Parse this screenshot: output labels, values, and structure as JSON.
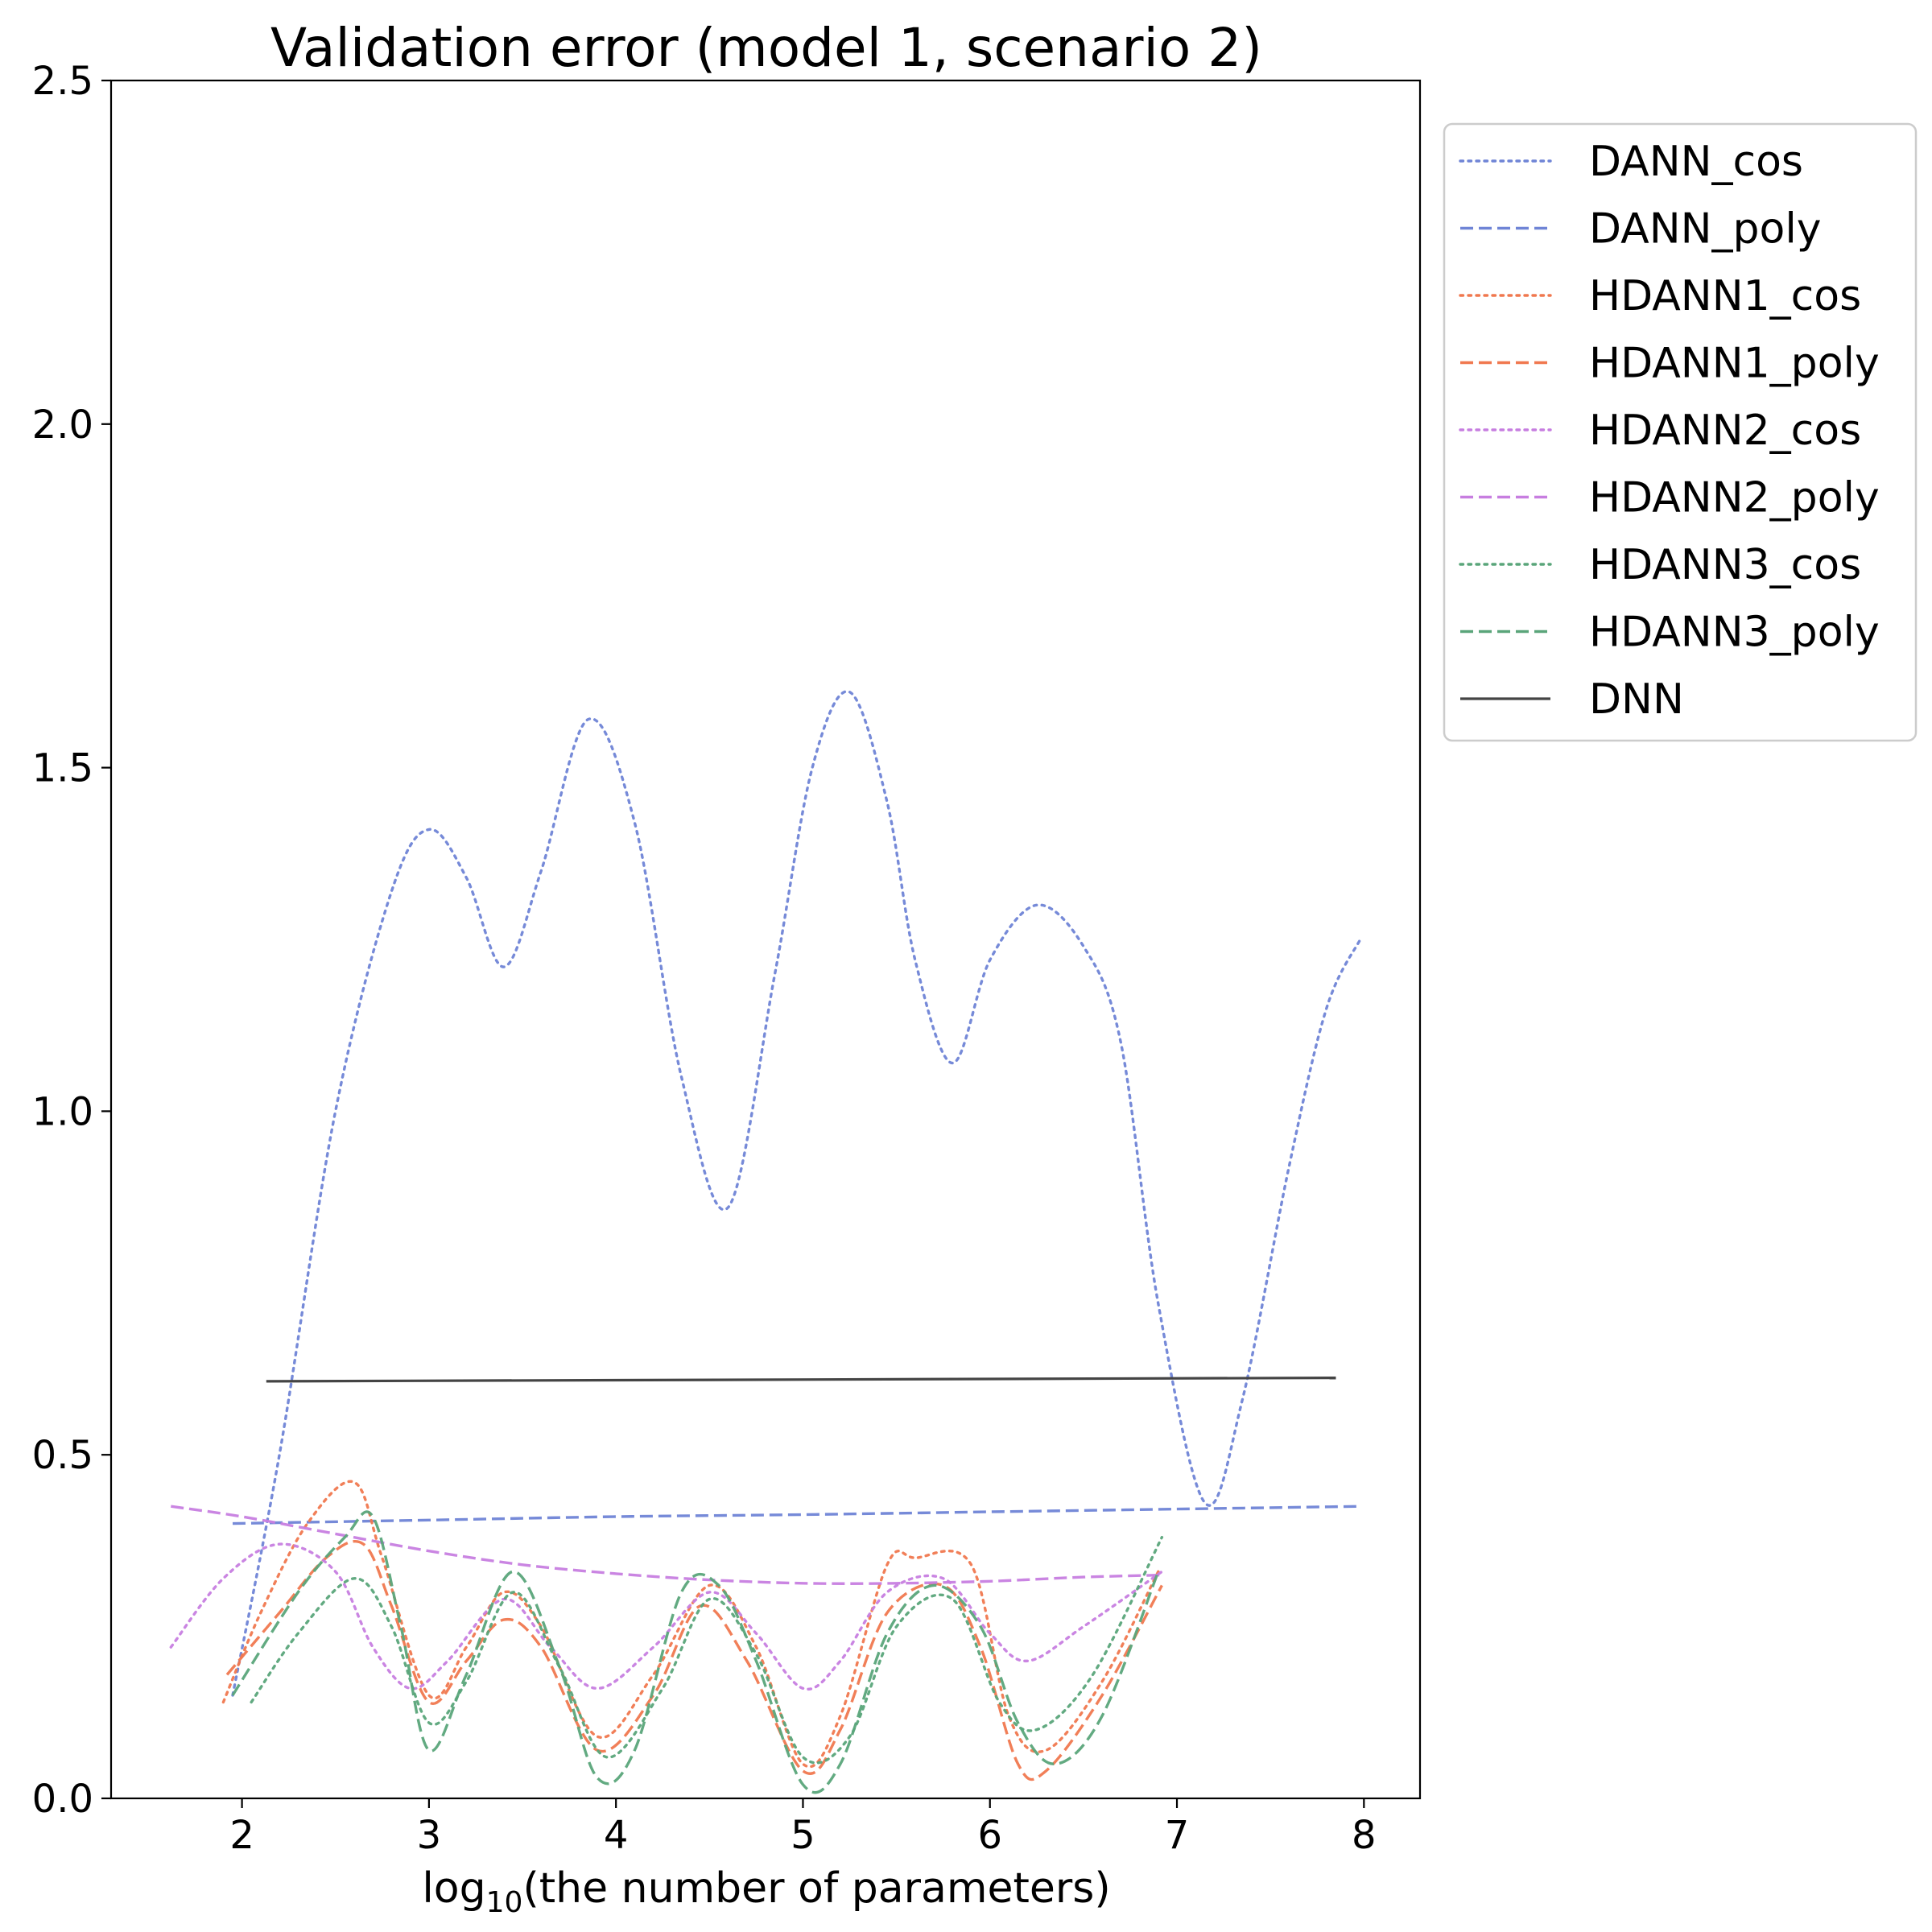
{
  "chart_data": {
    "type": "line",
    "title": "Validation error (model 1, scenario 2)",
    "xlabel": "log10(the number of parameters)",
    "xlabel_parts": {
      "base": "log",
      "sub": "10",
      "rest": "(the number of parameters)"
    },
    "ylabel": "",
    "xlim": [
      1.3,
      8.3
    ],
    "ylim": [
      0.0,
      2.5
    ],
    "xticks": [
      2,
      3,
      4,
      5,
      6,
      7,
      8
    ],
    "yticks": [
      0.0,
      0.5,
      1.0,
      1.5,
      2.0,
      2.5
    ],
    "xtick_labels": [
      "2",
      "3",
      "4",
      "5",
      "6",
      "7",
      "8"
    ],
    "ytick_labels": [
      "0.0",
      "0.5",
      "1.0",
      "1.5",
      "2.0",
      "2.5"
    ],
    "grid": false,
    "legend_position": "outside-right-top",
    "series": [
      {
        "name": "DANN_cos",
        "color": "#6f84d6",
        "style": "dotted",
        "x": [
          1.95,
          2.2,
          2.5,
          2.8,
          3.0,
          3.2,
          3.4,
          3.6,
          3.85,
          4.1,
          4.35,
          4.6,
          4.85,
          5.05,
          5.25,
          5.45,
          5.6,
          5.8,
          6.0,
          6.25,
          6.5,
          6.7,
          6.9,
          7.15,
          7.35,
          7.6,
          7.8,
          7.98
        ],
        "y": [
          0.15,
          0.5,
          1.0,
          1.32,
          1.41,
          1.34,
          1.21,
          1.35,
          1.57,
          1.42,
          1.05,
          0.86,
          1.2,
          1.5,
          1.61,
          1.45,
          1.22,
          1.07,
          1.22,
          1.3,
          1.24,
          1.1,
          0.72,
          0.43,
          0.58,
          0.92,
          1.15,
          1.25
        ]
      },
      {
        "name": "DANN_poly",
        "color": "#6f84d6",
        "style": "dashed",
        "x": [
          1.95,
          3.0,
          4.0,
          5.0,
          6.0,
          7.0,
          7.98
        ],
        "y": [
          0.4,
          0.405,
          0.41,
          0.413,
          0.417,
          0.421,
          0.425
        ]
      },
      {
        "name": "HDANN1_cos",
        "color": "#f0784f",
        "style": "dotted",
        "x": [
          1.9,
          2.1,
          2.35,
          2.6,
          2.75,
          3.0,
          3.2,
          3.4,
          3.6,
          3.9,
          4.2,
          4.5,
          4.75,
          5.0,
          5.2,
          5.45,
          5.6,
          5.9,
          6.1,
          6.3,
          6.6,
          6.9
        ],
        "y": [
          0.14,
          0.27,
          0.4,
          0.46,
          0.35,
          0.15,
          0.22,
          0.3,
          0.25,
          0.09,
          0.18,
          0.31,
          0.22,
          0.05,
          0.12,
          0.34,
          0.35,
          0.34,
          0.12,
          0.07,
          0.17,
          0.33
        ]
      },
      {
        "name": "HDANN1_poly",
        "color": "#f0784f",
        "style": "dashed",
        "x": [
          1.92,
          2.2,
          2.45,
          2.65,
          2.8,
          3.0,
          3.2,
          3.4,
          3.6,
          3.9,
          4.2,
          4.45,
          4.7,
          5.0,
          5.2,
          5.45,
          5.75,
          5.95,
          6.15,
          6.3,
          6.6,
          6.92
        ],
        "y": [
          0.18,
          0.27,
          0.35,
          0.37,
          0.28,
          0.14,
          0.2,
          0.26,
          0.22,
          0.07,
          0.15,
          0.28,
          0.2,
          0.04,
          0.1,
          0.27,
          0.31,
          0.22,
          0.05,
          0.04,
          0.15,
          0.31
        ]
      },
      {
        "name": "HDANN2_cos",
        "color": "#c77ee0",
        "style": "dotted",
        "x": [
          1.62,
          1.9,
          2.2,
          2.5,
          2.7,
          2.9,
          3.1,
          3.4,
          3.65,
          3.9,
          4.2,
          4.5,
          4.75,
          5.0,
          5.2,
          5.45,
          5.75,
          6.0,
          6.2,
          6.5,
          6.92
        ],
        "y": [
          0.22,
          0.32,
          0.37,
          0.33,
          0.22,
          0.16,
          0.2,
          0.29,
          0.22,
          0.16,
          0.22,
          0.3,
          0.24,
          0.16,
          0.2,
          0.3,
          0.32,
          0.24,
          0.2,
          0.25,
          0.33
        ]
      },
      {
        "name": "HDANN2_poly",
        "color": "#c77ee0",
        "style": "dashed",
        "x": [
          1.62,
          2.0,
          2.5,
          3.0,
          3.5,
          4.0,
          4.5,
          5.0,
          5.5,
          6.0,
          6.5,
          6.92
        ],
        "y": [
          0.425,
          0.41,
          0.385,
          0.36,
          0.34,
          0.327,
          0.318,
          0.313,
          0.313,
          0.316,
          0.322,
          0.325
        ]
      },
      {
        "name": "HDANN3_cos",
        "color": "#5aa57a",
        "style": "dotted",
        "x": [
          2.05,
          2.3,
          2.6,
          2.8,
          3.0,
          3.2,
          3.45,
          3.7,
          3.95,
          4.25,
          4.5,
          4.75,
          5.0,
          5.25,
          5.5,
          5.8,
          6.05,
          6.25,
          6.55,
          6.92
        ],
        "y": [
          0.14,
          0.24,
          0.32,
          0.25,
          0.11,
          0.17,
          0.3,
          0.19,
          0.06,
          0.16,
          0.29,
          0.21,
          0.06,
          0.09,
          0.25,
          0.29,
          0.14,
          0.1,
          0.18,
          0.38
        ]
      },
      {
        "name": "HDANN3_poly",
        "color": "#5aa57a",
        "style": "dashed",
        "x": [
          1.95,
          2.3,
          2.55,
          2.7,
          2.85,
          3.0,
          3.2,
          3.45,
          3.7,
          3.9,
          4.1,
          4.35,
          4.55,
          4.75,
          5.0,
          5.2,
          5.45,
          5.7,
          5.95,
          6.15,
          6.35,
          6.6,
          6.9
        ],
        "y": [
          0.15,
          0.3,
          0.38,
          0.41,
          0.25,
          0.07,
          0.18,
          0.33,
          0.19,
          0.03,
          0.07,
          0.3,
          0.31,
          0.2,
          0.02,
          0.05,
          0.24,
          0.31,
          0.25,
          0.11,
          0.05,
          0.12,
          0.33
        ]
      },
      {
        "name": "DNN",
        "color": "#444444",
        "style": "solid",
        "x": [
          2.13,
          7.85
        ],
        "y": [
          0.607,
          0.612
        ]
      }
    ]
  }
}
